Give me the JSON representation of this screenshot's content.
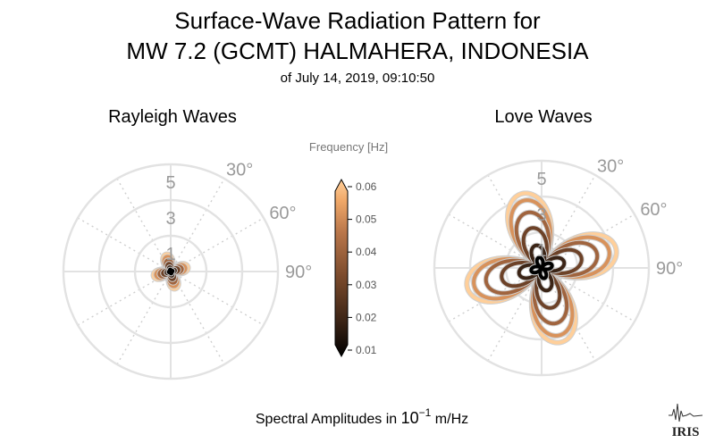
{
  "header": {
    "title_line1": "Surface-Wave Radiation Pattern for",
    "title_line2": "MW 7.2 (GCMT) HALMAHERA, INDONESIA",
    "subtitle": "of July 14, 2019, 09:10:50"
  },
  "footer": {
    "xlabel_prefix": "Spectral Amplitudes in ",
    "xlabel_base": "10",
    "xlabel_exp": "−1",
    "xlabel_suffix": " m/Hz",
    "logo_text": "IRIS"
  },
  "colorbar": {
    "title": "Frequency [Hz]",
    "ticks": [
      "0.01",
      "0.02",
      "0.03",
      "0.04",
      "0.05",
      "0.06"
    ],
    "range": [
      0.01,
      0.06
    ],
    "colors": [
      "#000000",
      "#3b2416",
      "#7a4a2c",
      "#b9764a",
      "#f0a868",
      "#ffcf9a"
    ]
  },
  "chart_data": [
    {
      "type": "polar-line",
      "title": "Rayleigh Waves",
      "radial_ticks": [
        "1",
        "3",
        "5"
      ],
      "rlim": [
        0,
        6
      ],
      "angle_ticks": [
        "30°",
        "60°",
        "90°"
      ],
      "grid": true,
      "series": [
        {
          "frequency": 0.01,
          "max_amplitude": 0.12,
          "lobes": 4,
          "phase_deg": 30
        },
        {
          "frequency": 0.02,
          "max_amplitude": 0.25,
          "lobes": 4,
          "phase_deg": 30
        },
        {
          "frequency": 0.03,
          "max_amplitude": 0.45,
          "lobes": 4,
          "phase_deg": 30
        },
        {
          "frequency": 0.04,
          "max_amplitude": 0.65,
          "lobes": 4,
          "phase_deg": 30
        },
        {
          "frequency": 0.05,
          "max_amplitude": 0.85,
          "lobes": 4,
          "phase_deg": 30
        },
        {
          "frequency": 0.06,
          "max_amplitude": 1.0,
          "lobes": 4,
          "phase_deg": 30
        }
      ]
    },
    {
      "type": "polar-line",
      "title": "Love Waves",
      "radial_ticks": [
        "1",
        "3",
        "5"
      ],
      "rlim": [
        0,
        6
      ],
      "angle_ticks": [
        "30°",
        "60°",
        "90°"
      ],
      "grid": true,
      "series": [
        {
          "frequency": 0.01,
          "max_amplitude": 0.6,
          "lobes": 4,
          "phase_deg": 30
        },
        {
          "frequency": 0.02,
          "max_amplitude": 1.3,
          "lobes": 4,
          "phase_deg": 30
        },
        {
          "frequency": 0.03,
          "max_amplitude": 2.3,
          "lobes": 4,
          "phase_deg": 30
        },
        {
          "frequency": 0.04,
          "max_amplitude": 3.2,
          "lobes": 4,
          "phase_deg": 30
        },
        {
          "frequency": 0.05,
          "max_amplitude": 3.9,
          "lobes": 4,
          "phase_deg": 30
        },
        {
          "frequency": 0.06,
          "max_amplitude": 4.3,
          "lobes": 4,
          "phase_deg": 30
        }
      ]
    }
  ]
}
